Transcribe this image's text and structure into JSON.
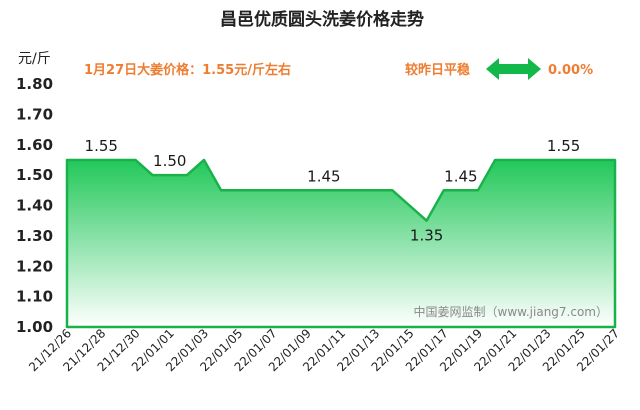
{
  "header": {
    "title": "昌邑优质圆头洗姜价格走势",
    "unit": "元/斤",
    "price_note": "1月27日大姜价格：1.55元/斤左右",
    "change_text": "较昨日平稳",
    "change_value": "0.00%",
    "watermark": "中国姜网监制（www.jiang7.com）"
  },
  "colors": {
    "line": "#19b24a",
    "fill_top": "#22c85a",
    "fill_bottom": "#ffffff",
    "accent_text": "#ee7d31",
    "arrow": "#12b84a"
  },
  "chart_data": {
    "type": "area",
    "title": "昌邑优质圆头洗姜价格走势",
    "ylabel": "元/斤",
    "xlabel": "",
    "ylim": [
      1.0,
      1.8
    ],
    "y_ticks": [
      "1.00",
      "1.10",
      "1.20",
      "1.30",
      "1.40",
      "1.50",
      "1.60",
      "1.70",
      "1.80"
    ],
    "x": [
      "21/12/26",
      "21/12/27",
      "21/12/28",
      "21/12/29",
      "21/12/30",
      "21/12/31",
      "22/01/01",
      "22/01/02",
      "22/01/03",
      "22/01/04",
      "22/01/05",
      "22/01/06",
      "22/01/07",
      "22/01/08",
      "22/01/09",
      "22/01/10",
      "22/01/11",
      "22/01/12",
      "22/01/13",
      "22/01/14",
      "22/01/15",
      "22/01/16",
      "22/01/17",
      "22/01/18",
      "22/01/19",
      "22/01/20",
      "22/01/21",
      "22/01/22",
      "22/01/23",
      "22/01/24",
      "22/01/25",
      "22/01/26",
      "22/01/27"
    ],
    "x_tick_labels": [
      "21/12/26",
      "21/12/28",
      "21/12/30",
      "22/01/01",
      "22/01/03",
      "22/01/05",
      "22/01/07",
      "22/01/09",
      "22/01/11",
      "22/01/13",
      "22/01/15",
      "22/01/17",
      "22/01/19",
      "22/01/21",
      "22/01/23",
      "22/01/25",
      "22/01/27"
    ],
    "values": [
      1.55,
      1.55,
      1.55,
      1.55,
      1.55,
      1.5,
      1.5,
      1.5,
      1.55,
      1.45,
      1.45,
      1.45,
      1.45,
      1.45,
      1.45,
      1.45,
      1.45,
      1.45,
      1.45,
      1.45,
      1.4,
      1.35,
      1.45,
      1.45,
      1.45,
      1.55,
      1.55,
      1.55,
      1.55,
      1.55,
      1.55,
      1.55,
      1.55
    ],
    "data_labels": [
      {
        "index": 2,
        "text": "1.55"
      },
      {
        "index": 6,
        "text": "1.50"
      },
      {
        "index": 15,
        "text": "1.45"
      },
      {
        "index": 21,
        "text": "1.35"
      },
      {
        "index": 23,
        "text": "1.45"
      },
      {
        "index": 29,
        "text": "1.55"
      }
    ],
    "grid": false,
    "legend": "none"
  }
}
